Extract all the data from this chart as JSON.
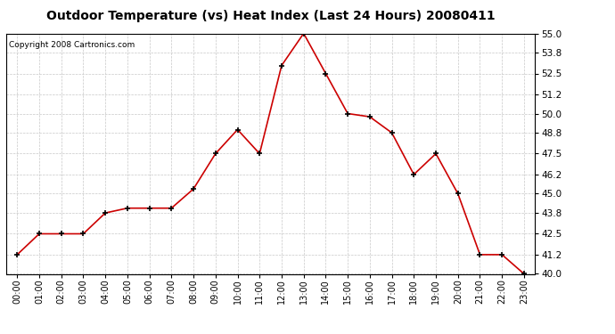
{
  "title": "Outdoor Temperature (vs) Heat Index (Last 24 Hours) 20080411",
  "copyright": "Copyright 2008 Cartronics.com",
  "x_labels": [
    "00:00",
    "01:00",
    "02:00",
    "03:00",
    "04:00",
    "05:00",
    "06:00",
    "07:00",
    "08:00",
    "09:00",
    "10:00",
    "11:00",
    "12:00",
    "13:00",
    "14:00",
    "15:00",
    "16:00",
    "17:00",
    "18:00",
    "19:00",
    "20:00",
    "21:00",
    "22:00",
    "23:00"
  ],
  "y_values": [
    41.2,
    42.5,
    42.5,
    42.5,
    43.8,
    44.1,
    44.1,
    44.1,
    45.3,
    47.5,
    49.0,
    47.5,
    53.0,
    55.0,
    52.5,
    50.0,
    49.8,
    48.8,
    46.2,
    47.5,
    45.0,
    41.2,
    41.2,
    40.0
  ],
  "line_color": "#cc0000",
  "marker_color": "#000000",
  "bg_color": "#ffffff",
  "grid_color": "#c8c8c8",
  "y_min": 40.0,
  "y_max": 55.0,
  "y_ticks": [
    40.0,
    41.2,
    42.5,
    43.8,
    45.0,
    46.2,
    47.5,
    48.8,
    50.0,
    51.2,
    52.5,
    53.8,
    55.0
  ]
}
